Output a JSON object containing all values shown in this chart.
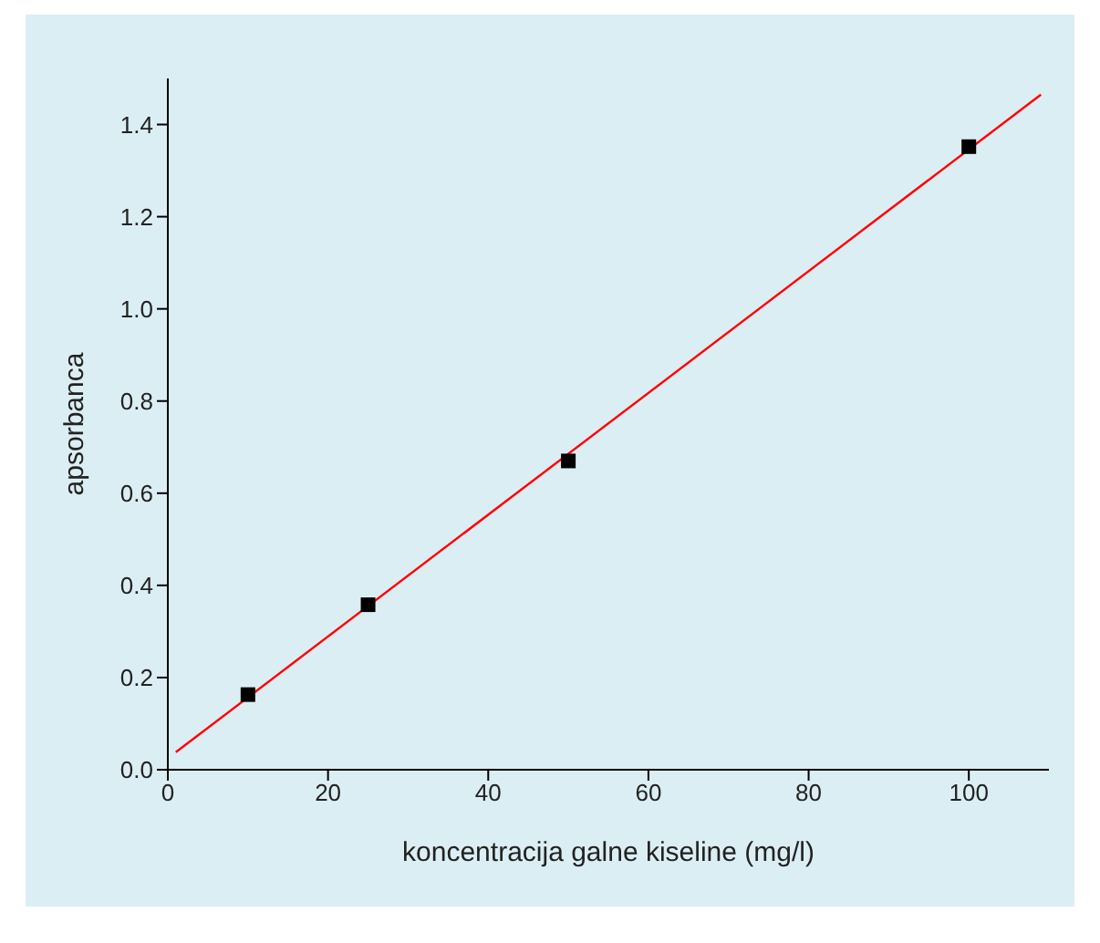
{
  "chart_data": {
    "type": "scatter",
    "xlabel": "koncentracija galne kiseline (mg/l)",
    "ylabel": "apsorbanca",
    "xlim": [
      0,
      110
    ],
    "xticks": [
      0,
      20,
      40,
      60,
      80,
      100
    ],
    "ylim": [
      0,
      1.5
    ],
    "yticks": [
      {
        "value": 0,
        "label": "0.0"
      },
      0.2,
      0.4,
      0.6,
      0.8,
      {
        "value": 1,
        "label": "1.0"
      },
      1.2,
      1.4
    ],
    "grid": false,
    "series": [
      {
        "marker": "square",
        "color": "#000000",
        "x": [
          10,
          25,
          50,
          100
        ],
        "values": [
          0.163,
          0.358,
          0.67,
          1.352
        ]
      },
      {
        "type": "line",
        "marker": "none",
        "color": "#ff0000",
        "x": [
          1,
          109
        ],
        "values": [
          0.038,
          1.465
        ]
      }
    ]
  }
}
